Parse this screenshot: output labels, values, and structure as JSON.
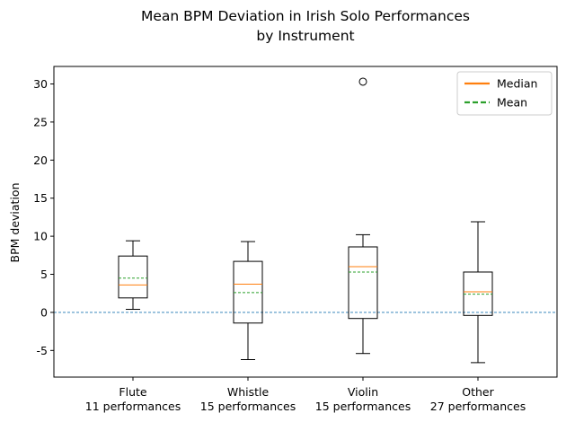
{
  "chart_data": {
    "type": "box",
    "title": "Mean BPM Deviation in Irish Solo Performances",
    "subtitle": "by Instrument",
    "xlabel": "",
    "ylabel": "BPM deviation",
    "ylim": [
      -8.5,
      32.3
    ],
    "yticks": [
      -5,
      0,
      5,
      10,
      15,
      20,
      25,
      30
    ],
    "categories": [
      {
        "name": "Flute",
        "sublabel": "11 performances"
      },
      {
        "name": "Whistle",
        "sublabel": "15 performances"
      },
      {
        "name": "Violin",
        "sublabel": "15 performances"
      },
      {
        "name": "Other",
        "sublabel": "27 performances"
      }
    ],
    "boxes": [
      {
        "whisker_low": 0.4,
        "q1": 1.9,
        "median": 3.6,
        "q3": 7.4,
        "whisker_high": 9.4,
        "mean": 4.5,
        "outliers": []
      },
      {
        "whisker_low": -6.2,
        "q1": -1.4,
        "median": 3.7,
        "q3": 6.7,
        "whisker_high": 9.3,
        "mean": 2.6,
        "outliers": []
      },
      {
        "whisker_low": -5.4,
        "q1": -0.8,
        "median": 6.0,
        "q3": 8.6,
        "whisker_high": 10.2,
        "mean": 5.3,
        "outliers": [
          30.3
        ]
      },
      {
        "whisker_low": -6.6,
        "q1": -0.4,
        "median": 2.7,
        "q3": 5.3,
        "whisker_high": 11.9,
        "mean": 2.4,
        "outliers": []
      }
    ],
    "reference_line": {
      "y": 0,
      "style": "dashed",
      "color": "#1f77b4"
    },
    "legend": {
      "position": "top-right",
      "entries": [
        {
          "label": "Median",
          "color": "#ff7f0e",
          "style": "solid"
        },
        {
          "label": "Mean",
          "color": "#2ca02c",
          "style": "dashed"
        }
      ]
    },
    "colors": {
      "box": "#000000",
      "median": "#ff7f0e",
      "mean": "#2ca02c",
      "zero_line": "#1f77b4"
    },
    "grid": false
  }
}
